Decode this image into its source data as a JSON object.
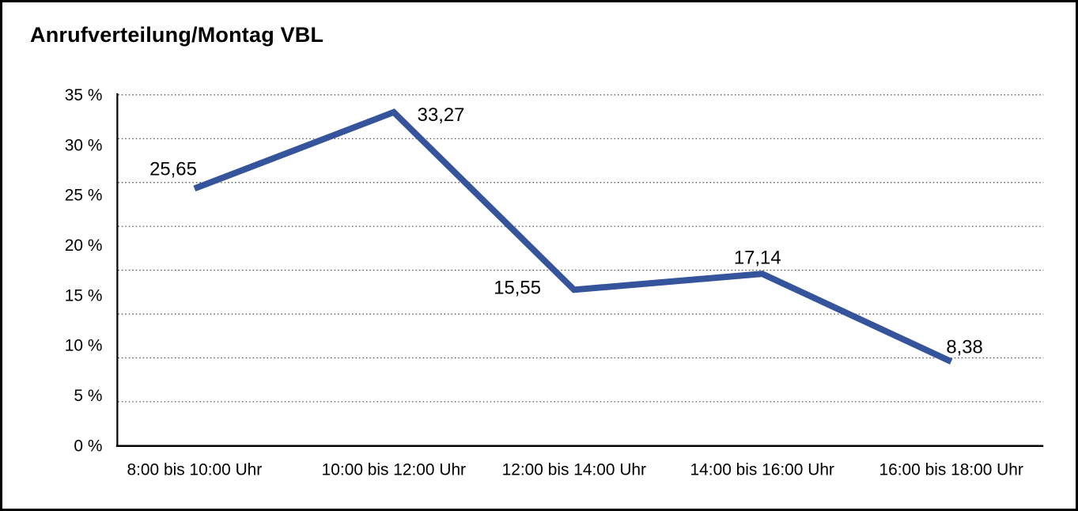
{
  "chart_data": {
    "type": "line",
    "title": "Anrufverteilung/Montag VBL",
    "categories": [
      "8:00 bis 10:00 Uhr",
      "10:00 bis 12:00 Uhr",
      "12:00 bis 14:00 Uhr",
      "14:00 bis 16:00 Uhr",
      "16:00 bis 18:00 Uhr"
    ],
    "values": [
      25.65,
      33.27,
      15.55,
      17.14,
      8.38
    ],
    "value_labels": [
      "25,65",
      "33,27",
      "15,55",
      "17,14",
      "8,38"
    ],
    "xlabel": "",
    "ylabel": "",
    "ylim": [
      0,
      35
    ],
    "yticks": [
      35,
      30,
      25,
      20,
      15,
      10,
      5,
      0
    ],
    "ytick_labels": [
      "35 %",
      "30 %",
      "25 %",
      "20 %",
      "15 %",
      "10 %",
      "5 %",
      "0 %"
    ],
    "grid": "horizontal-dotted",
    "legend": "none",
    "colors": {
      "line": "#35549b",
      "axis": "#000000",
      "grid": "#444444",
      "text": "#000000",
      "background": "#ffffff",
      "frame_border": "#000000"
    }
  }
}
